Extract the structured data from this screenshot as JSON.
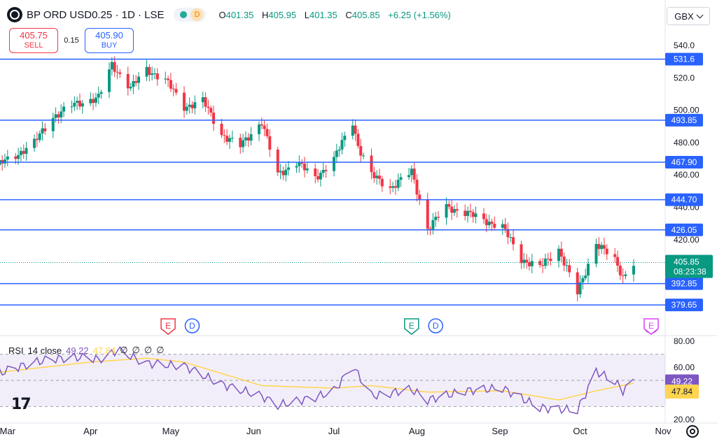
{
  "header": {
    "symbol": "BP ORD USD0.25 · 1D · LSE",
    "market_badge": "D",
    "ohlc": [
      {
        "label": "O",
        "value": "401.35"
      },
      {
        "label": "H",
        "value": "405.95"
      },
      {
        "label": "L",
        "value": "401.35"
      },
      {
        "label": "C",
        "value": "405.85"
      }
    ],
    "change": "+6.25 (+1.56%)",
    "currency": "GBX"
  },
  "trade": {
    "sell_price": "405.75",
    "sell_label": "SELL",
    "spread": "0.15",
    "buy_price": "405.90",
    "buy_label": "BUY"
  },
  "colors": {
    "up": "#089981",
    "down": "#f23645",
    "level_line": "#2962ff",
    "rsi_line": "#7e57c2",
    "rsi_ma": "#ffd54f",
    "price_label": "#089981"
  },
  "rsi_legend": {
    "name": "RSI",
    "params": "14 close",
    "value": "49.22",
    "ma_value": "47.84",
    "nulls": [
      "∅",
      "∅",
      "∅",
      "∅"
    ]
  },
  "chart_data": [
    {
      "type": "candlestick",
      "x_labels": [
        {
          "label": "Mar",
          "date": "2024-03-01"
        },
        {
          "label": "Apr",
          "date": "2024-04-01"
        },
        {
          "label": "May",
          "date": "2024-05-01"
        },
        {
          "label": "Jun",
          "date": "2024-06-01"
        },
        {
          "label": "Jul",
          "date": "2024-07-01"
        },
        {
          "label": "Aug",
          "date": "2024-08-01"
        },
        {
          "label": "Sep",
          "date": "2024-09-01"
        },
        {
          "label": "Oct",
          "date": "2024-10-01"
        },
        {
          "label": "Nov",
          "date": "2024-11-01"
        }
      ],
      "y_ticks": [
        "540.0",
        "520.0",
        "500.00",
        "480.00",
        "460.00",
        "440.00",
        "420.00"
      ],
      "ylim": [
        371.5,
        550
      ],
      "horizontal_levels": [
        "531.6",
        "493.85",
        "467.90",
        "444.70",
        "426.05",
        "392.85",
        "379.65"
      ],
      "last_price": {
        "value": 405.85,
        "label": "405.85",
        "countdown": "08:23:38"
      },
      "events": [
        {
          "type": "earnings",
          "glyph": "E",
          "date": "2024-04-30"
        },
        {
          "type": "dividend",
          "glyph": "D",
          "date": "2024-05-09"
        },
        {
          "type": "earnings",
          "glyph": "E",
          "date": "2024-07-30"
        },
        {
          "type": "dividend",
          "glyph": "D",
          "date": "2024-08-08"
        },
        {
          "type": "split",
          "glyph": "⚡",
          "date": "2024-10-28"
        },
        {
          "type": "earnings",
          "glyph": "E",
          "date": "2024-11-05"
        }
      ],
      "anchors": [
        {
          "date": "2024-02-26",
          "price": 466
        },
        {
          "date": "2024-03-04",
          "price": 472
        },
        {
          "date": "2024-03-11",
          "price": 480
        },
        {
          "date": "2024-03-18",
          "price": 496
        },
        {
          "date": "2024-03-25",
          "price": 503
        },
        {
          "date": "2024-04-04",
          "price": 508
        },
        {
          "date": "2024-04-09",
          "price": 528
        },
        {
          "date": "2024-04-16",
          "price": 514
        },
        {
          "date": "2024-04-22",
          "price": 525
        },
        {
          "date": "2024-04-29",
          "price": 519
        },
        {
          "date": "2024-05-06",
          "price": 502
        },
        {
          "date": "2024-05-13",
          "price": 506
        },
        {
          "date": "2024-05-20",
          "price": 485
        },
        {
          "date": "2024-05-27",
          "price": 478
        },
        {
          "date": "2024-06-04",
          "price": 493
        },
        {
          "date": "2024-06-10",
          "price": 460
        },
        {
          "date": "2024-06-17",
          "price": 468
        },
        {
          "date": "2024-06-24",
          "price": 458
        },
        {
          "date": "2024-07-01",
          "price": 470
        },
        {
          "date": "2024-07-08",
          "price": 493
        },
        {
          "date": "2024-07-10",
          "price": 478
        },
        {
          "date": "2024-07-15",
          "price": 460
        },
        {
          "date": "2024-07-22",
          "price": 452
        },
        {
          "date": "2024-07-30",
          "price": 462
        },
        {
          "date": "2024-08-05",
          "price": 427
        },
        {
          "date": "2024-08-12",
          "price": 440
        },
        {
          "date": "2024-08-19",
          "price": 437
        },
        {
          "date": "2024-08-26",
          "price": 432
        },
        {
          "date": "2024-09-02",
          "price": 428
        },
        {
          "date": "2024-09-09",
          "price": 408
        },
        {
          "date": "2024-09-16",
          "price": 403
        },
        {
          "date": "2024-09-23",
          "price": 414
        },
        {
          "date": "2024-09-30",
          "price": 387
        },
        {
          "date": "2024-10-07",
          "price": 418
        },
        {
          "date": "2024-10-14",
          "price": 407
        },
        {
          "date": "2024-10-17",
          "price": 397
        },
        {
          "date": "2024-10-21",
          "price": 406
        }
      ]
    },
    {
      "type": "line",
      "name": "RSI 14 close",
      "y_ticks": [
        "80.00",
        "60.00",
        "40.00",
        "20.00"
      ],
      "ylim": [
        20,
        80
      ],
      "band": [
        30,
        70
      ],
      "midline": 50,
      "last": {
        "rsi": "49.22",
        "ma": "47.84"
      },
      "rsi_anchors": [
        {
          "date": "2024-02-26",
          "value": 55
        },
        {
          "date": "2024-03-11",
          "value": 64
        },
        {
          "date": "2024-03-25",
          "value": 68
        },
        {
          "date": "2024-04-04",
          "value": 66
        },
        {
          "date": "2024-04-11",
          "value": 73
        },
        {
          "date": "2024-04-22",
          "value": 63
        },
        {
          "date": "2024-05-06",
          "value": 61
        },
        {
          "date": "2024-05-20",
          "value": 47
        },
        {
          "date": "2024-06-04",
          "value": 38
        },
        {
          "date": "2024-06-10",
          "value": 31
        },
        {
          "date": "2024-06-24",
          "value": 37
        },
        {
          "date": "2024-07-01",
          "value": 42
        },
        {
          "date": "2024-07-08",
          "value": 61
        },
        {
          "date": "2024-07-15",
          "value": 38
        },
        {
          "date": "2024-07-30",
          "value": 43
        },
        {
          "date": "2024-08-05",
          "value": 35
        },
        {
          "date": "2024-08-19",
          "value": 42
        },
        {
          "date": "2024-09-02",
          "value": 44
        },
        {
          "date": "2024-09-16",
          "value": 29
        },
        {
          "date": "2024-09-30",
          "value": 27
        },
        {
          "date": "2024-10-07",
          "value": 57
        },
        {
          "date": "2024-10-14",
          "value": 49
        },
        {
          "date": "2024-10-17",
          "value": 42
        },
        {
          "date": "2024-10-21",
          "value": 49.22
        }
      ],
      "ma_anchors": [
        {
          "date": "2024-02-26",
          "value": 56
        },
        {
          "date": "2024-04-01",
          "value": 64
        },
        {
          "date": "2024-04-22",
          "value": 67
        },
        {
          "date": "2024-05-06",
          "value": 64
        },
        {
          "date": "2024-06-04",
          "value": 46
        },
        {
          "date": "2024-07-01",
          "value": 44
        },
        {
          "date": "2024-07-15",
          "value": 46
        },
        {
          "date": "2024-08-05",
          "value": 41
        },
        {
          "date": "2024-09-02",
          "value": 42
        },
        {
          "date": "2024-09-23",
          "value": 35
        },
        {
          "date": "2024-10-07",
          "value": 42
        },
        {
          "date": "2024-10-21",
          "value": 47.84
        }
      ]
    }
  ]
}
